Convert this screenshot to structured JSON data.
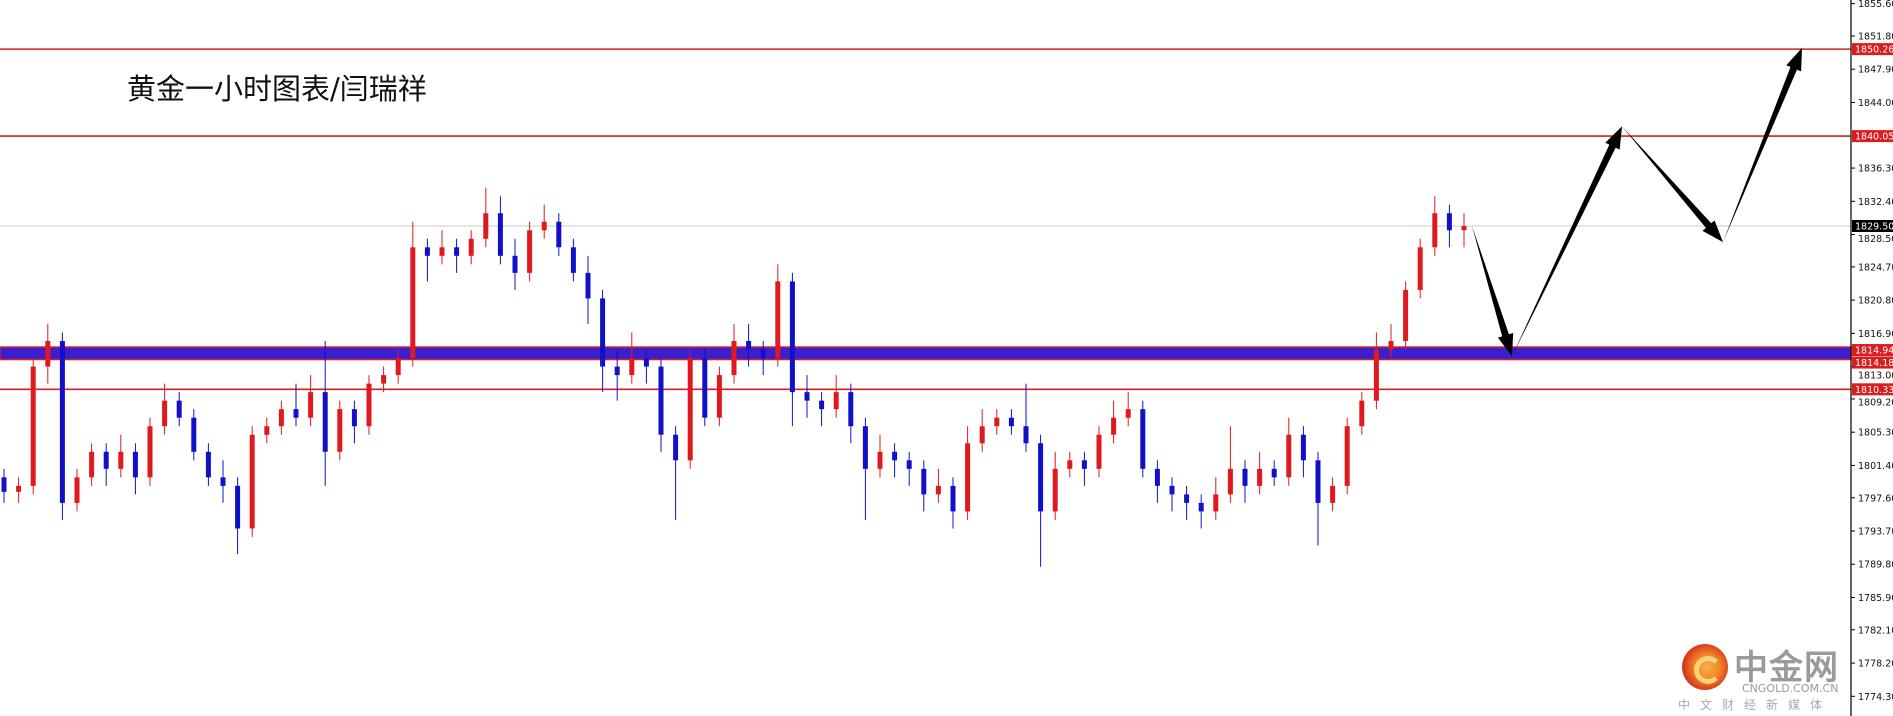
{
  "title": "黄金一小时图表/闫瑞祥",
  "logo": {
    "name": "中金网",
    "domain": "CNGOLD.COM.CN",
    "tagline": "中文财经新媒体"
  },
  "colors": {
    "bull": "#e0191f",
    "bear": "#1010c8",
    "level": "#d81e1e",
    "band": "#3a1fd0",
    "current": "#000000",
    "grid": "#c8c8c8"
  },
  "chart_data": {
    "type": "candlestick",
    "ylim": [
      1772.5,
      1856.0
    ],
    "y_ticks": [
      "1855.60",
      "1851.80",
      "1847.90",
      "1844.00",
      "1836.30",
      "1832.40",
      "1828.50",
      "1824.70",
      "1820.80",
      "1816.90",
      "1813.00",
      "1809.20",
      "1805.30",
      "1801.40",
      "1797.60",
      "1793.70",
      "1789.80",
      "1785.90",
      "1782.10",
      "1778.20",
      "1774.30"
    ],
    "levels": [
      {
        "price": "1850.26",
        "style": "red-line"
      },
      {
        "price": "1840.05",
        "style": "red-line"
      },
      {
        "price": "1814.94",
        "style": "band"
      },
      {
        "price": "1814.18",
        "style": "band"
      },
      {
        "price": "1810.33",
        "style": "red-line"
      }
    ],
    "current_price": "1829.50",
    "forecast_path": [
      1829.5,
      1814.2,
      1841.2,
      1827.6,
      1850.4
    ],
    "candles_ohlc": [
      [
        1800,
        1801,
        1797,
        1798.3
      ],
      [
        1798.3,
        1800,
        1797,
        1799
      ],
      [
        1799,
        1814,
        1798,
        1813
      ],
      [
        1813,
        1818,
        1811,
        1816
      ],
      [
        1816,
        1817,
        1795,
        1797
      ],
      [
        1797,
        1801,
        1796,
        1800
      ],
      [
        1800,
        1804,
        1799,
        1803
      ],
      [
        1803,
        1804,
        1799,
        1801
      ],
      [
        1801,
        1805,
        1800,
        1803
      ],
      [
        1803,
        1804,
        1798,
        1800
      ],
      [
        1800,
        1807,
        1799,
        1806
      ],
      [
        1806,
        1811,
        1805,
        1809
      ],
      [
        1809,
        1810,
        1806,
        1807
      ],
      [
        1807,
        1808,
        1802,
        1803
      ],
      [
        1803,
        1804,
        1799,
        1800
      ],
      [
        1800,
        1802,
        1797,
        1799
      ],
      [
        1799,
        1800,
        1791,
        1794
      ],
      [
        1794,
        1806,
        1793,
        1805
      ],
      [
        1805,
        1807,
        1804,
        1806
      ],
      [
        1806,
        1809,
        1805,
        1808
      ],
      [
        1808,
        1811,
        1806,
        1807
      ],
      [
        1807,
        1812,
        1806,
        1810
      ],
      [
        1810,
        1816,
        1799,
        1803
      ],
      [
        1803,
        1809,
        1802,
        1808
      ],
      [
        1808,
        1809,
        1804,
        1806
      ],
      [
        1806,
        1812,
        1805,
        1811
      ],
      [
        1811,
        1813,
        1810,
        1812
      ],
      [
        1812,
        1815,
        1811,
        1814
      ],
      [
        1814,
        1830,
        1813,
        1827
      ],
      [
        1827,
        1828,
        1823,
        1826
      ],
      [
        1826,
        1829,
        1825,
        1827
      ],
      [
        1827,
        1828,
        1824,
        1826
      ],
      [
        1826,
        1829,
        1825,
        1828
      ],
      [
        1828,
        1834,
        1827,
        1831
      ],
      [
        1831,
        1833,
        1825,
        1826
      ],
      [
        1826,
        1828,
        1822,
        1824
      ],
      [
        1824,
        1830,
        1823,
        1829
      ],
      [
        1829,
        1832,
        1828,
        1830
      ],
      [
        1830,
        1831,
        1826,
        1827
      ],
      [
        1827,
        1828,
        1823,
        1824
      ],
      [
        1824,
        1826,
        1818,
        1821
      ],
      [
        1821,
        1822,
        1810,
        1813
      ],
      [
        1813,
        1815,
        1809,
        1812
      ],
      [
        1812,
        1817,
        1811,
        1814
      ],
      [
        1814,
        1815,
        1811,
        1813
      ],
      [
        1813,
        1814,
        1803,
        1805
      ],
      [
        1805,
        1806,
        1795,
        1802
      ],
      [
        1802,
        1815,
        1801,
        1814
      ],
      [
        1814,
        1815,
        1806,
        1807
      ],
      [
        1807,
        1813,
        1806,
        1812
      ],
      [
        1812,
        1818,
        1811,
        1816
      ],
      [
        1816,
        1818,
        1813,
        1815
      ],
      [
        1815,
        1816,
        1812,
        1814
      ],
      [
        1814,
        1825,
        1813,
        1823
      ],
      [
        1823,
        1824,
        1806,
        1810
      ],
      [
        1810,
        1812,
        1807,
        1809
      ],
      [
        1809,
        1810,
        1806,
        1808
      ],
      [
        1808,
        1812,
        1807,
        1810
      ],
      [
        1810,
        1811,
        1804,
        1806
      ],
      [
        1806,
        1807,
        1795,
        1801
      ],
      [
        1801,
        1805,
        1800,
        1803
      ],
      [
        1803,
        1804,
        1800,
        1802
      ],
      [
        1802,
        1803,
        1799,
        1801
      ],
      [
        1801,
        1802,
        1796,
        1798
      ],
      [
        1798,
        1801,
        1797,
        1799
      ],
      [
        1799,
        1800,
        1794,
        1796
      ],
      [
        1796,
        1806,
        1795,
        1804
      ],
      [
        1804,
        1808,
        1803,
        1806
      ],
      [
        1806,
        1808,
        1805,
        1807
      ],
      [
        1807,
        1808,
        1805,
        1806
      ],
      [
        1806,
        1811,
        1803,
        1804
      ],
      [
        1804,
        1805,
        1789.5,
        1796
      ],
      [
        1796,
        1803,
        1795,
        1801
      ],
      [
        1801,
        1803,
        1800,
        1802
      ],
      [
        1802,
        1803,
        1799,
        1801
      ],
      [
        1801,
        1806,
        1800,
        1805
      ],
      [
        1805,
        1809,
        1804,
        1807
      ],
      [
        1807,
        1810,
        1806,
        1808
      ],
      [
        1808,
        1809,
        1800,
        1801
      ],
      [
        1801,
        1802,
        1797,
        1799
      ],
      [
        1799,
        1800,
        1796,
        1798
      ],
      [
        1798,
        1799,
        1795,
        1797
      ],
      [
        1797,
        1798,
        1794,
        1796
      ],
      [
        1796,
        1800,
        1795,
        1798
      ],
      [
        1798,
        1806,
        1797,
        1801
      ],
      [
        1801,
        1802,
        1797,
        1799
      ],
      [
        1799,
        1803,
        1798,
        1801
      ],
      [
        1801,
        1802,
        1799,
        1800
      ],
      [
        1800,
        1807,
        1799,
        1805
      ],
      [
        1805,
        1806,
        1800,
        1802
      ],
      [
        1802,
        1803,
        1792,
        1797
      ],
      [
        1797,
        1800,
        1796,
        1799
      ],
      [
        1799,
        1807,
        1798,
        1806
      ],
      [
        1806,
        1810,
        1805,
        1809
      ],
      [
        1809,
        1817,
        1808,
        1815
      ],
      [
        1815,
        1818,
        1814,
        1816
      ],
      [
        1816,
        1823,
        1815,
        1822
      ],
      [
        1822,
        1828,
        1821,
        1827
      ],
      [
        1827,
        1833,
        1826,
        1831
      ],
      [
        1831,
        1832,
        1827,
        1829
      ],
      [
        1829,
        1831,
        1827,
        1829.5
      ]
    ]
  }
}
